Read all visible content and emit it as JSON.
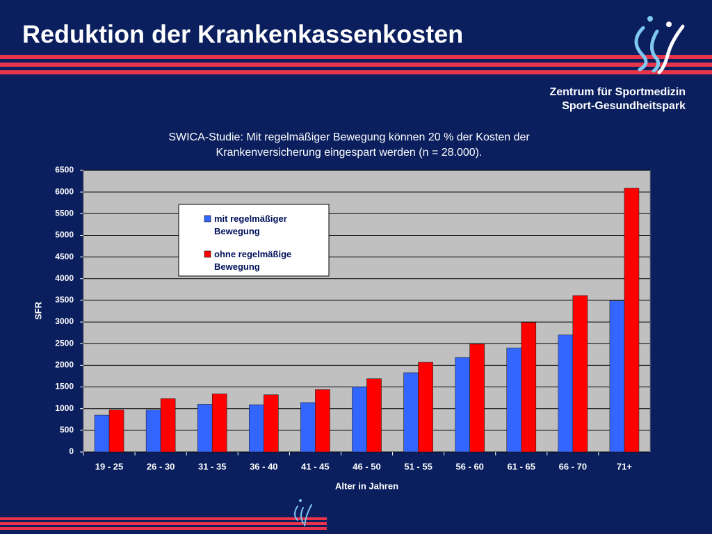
{
  "slide": {
    "title": "Reduktion der Krankenkassenkosten",
    "org_lines": [
      "Zentrum für Sportmedizin",
      "Sport-Gesundheitspark"
    ]
  },
  "chart_data": {
    "type": "bar",
    "title": "SWICA-Studie: Mit regelmäßiger Bewegung können 20 % der Kosten der Krankenversicherung eingespart werden (n = 28.000).",
    "x_label": "Alter in Jahren",
    "y_label": "SFR",
    "categories": [
      "19 - 25",
      "26 - 30",
      "31 - 35",
      "36 - 40",
      "41 - 45",
      "46 - 50",
      "51 - 55",
      "56 - 60",
      "61 - 65",
      "66 - 70",
      "71+"
    ],
    "series": [
      {
        "name": "mit regelmäßiger Bewegung",
        "color": "#3366ff",
        "values": [
          850,
          970,
          1100,
          1090,
          1140,
          1500,
          1830,
          2180,
          2400,
          2700,
          3490
        ]
      },
      {
        "name": "ohne regelmäßige Bewegung",
        "color": "#ff0000",
        "values": [
          970,
          1230,
          1340,
          1320,
          1440,
          1690,
          2070,
          2490,
          2990,
          3610,
          6090
        ]
      }
    ],
    "ylim": [
      0,
      6500
    ],
    "yticks": [
      0,
      500,
      1000,
      1500,
      2000,
      2500,
      3000,
      3500,
      4000,
      4500,
      5000,
      5500,
      6000,
      6500
    ],
    "grid": true,
    "legend": "top-left"
  }
}
